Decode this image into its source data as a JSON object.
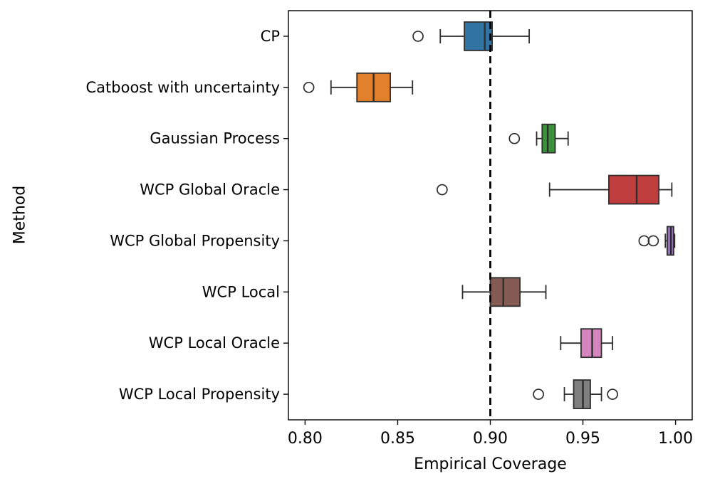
{
  "chart_data": {
    "type": "boxplot",
    "orientation": "horizontal",
    "title": "",
    "xlabel": "Empirical Coverage",
    "ylabel": "Method",
    "xlim": [
      0.791,
      1.009
    ],
    "grid": false,
    "xticks": [
      {
        "value": 0.8,
        "label": "0.80"
      },
      {
        "value": 0.85,
        "label": "0.85"
      },
      {
        "value": 0.9,
        "label": "0.90"
      },
      {
        "value": 0.95,
        "label": "0.95"
      },
      {
        "value": 1.0,
        "label": "1.00"
      }
    ],
    "reference_line": {
      "value": 0.9,
      "style": "dashed",
      "color": "#000000"
    },
    "edge_color": "#2e2e2e",
    "series": [
      {
        "label": "CP",
        "color": "#3274a1",
        "stats": {
          "whisker_low": 0.873,
          "q1": 0.886,
          "median": 0.897,
          "q3": 0.901,
          "whisker_high": 0.921,
          "outliers": [
            0.861
          ]
        }
      },
      {
        "label": "Catboost with uncertainty",
        "color": "#e1812c",
        "stats": {
          "whisker_low": 0.814,
          "q1": 0.828,
          "median": 0.837,
          "q3": 0.846,
          "whisker_high": 0.858,
          "outliers": [
            0.802
          ]
        }
      },
      {
        "label": "Gaussian Process",
        "color": "#3a923a",
        "stats": {
          "whisker_low": 0.925,
          "q1": 0.928,
          "median": 0.931,
          "q3": 0.935,
          "whisker_high": 0.942,
          "outliers": [
            0.913
          ]
        }
      },
      {
        "label": "WCP Global Oracle",
        "color": "#c03d3e",
        "stats": {
          "whisker_low": 0.932,
          "q1": 0.964,
          "median": 0.979,
          "q3": 0.991,
          "whisker_high": 0.998,
          "outliers": [
            0.874
          ]
        }
      },
      {
        "label": "WCP Global Propensity",
        "color": "#9372b2",
        "stats": {
          "whisker_low": 0.9945,
          "q1": 0.9955,
          "median": 0.9975,
          "q3": 0.999,
          "whisker_high": 0.9995,
          "outliers": [
            0.983,
            0.988
          ]
        }
      },
      {
        "label": "WCP Local",
        "color": "#845b53",
        "stats": {
          "whisker_low": 0.885,
          "q1": 0.9,
          "median": 0.907,
          "q3": 0.916,
          "whisker_high": 0.93,
          "outliers": []
        }
      },
      {
        "label": "WCP Local Oracle",
        "color": "#d684bd",
        "stats": {
          "whisker_low": 0.938,
          "q1": 0.949,
          "median": 0.955,
          "q3": 0.96,
          "whisker_high": 0.966,
          "outliers": []
        }
      },
      {
        "label": "WCP Local Propensity",
        "color": "#7f7f7f",
        "stats": {
          "whisker_low": 0.94,
          "q1": 0.945,
          "median": 0.95,
          "q3": 0.954,
          "whisker_high": 0.96,
          "outliers": [
            0.926,
            0.966
          ]
        }
      }
    ]
  }
}
